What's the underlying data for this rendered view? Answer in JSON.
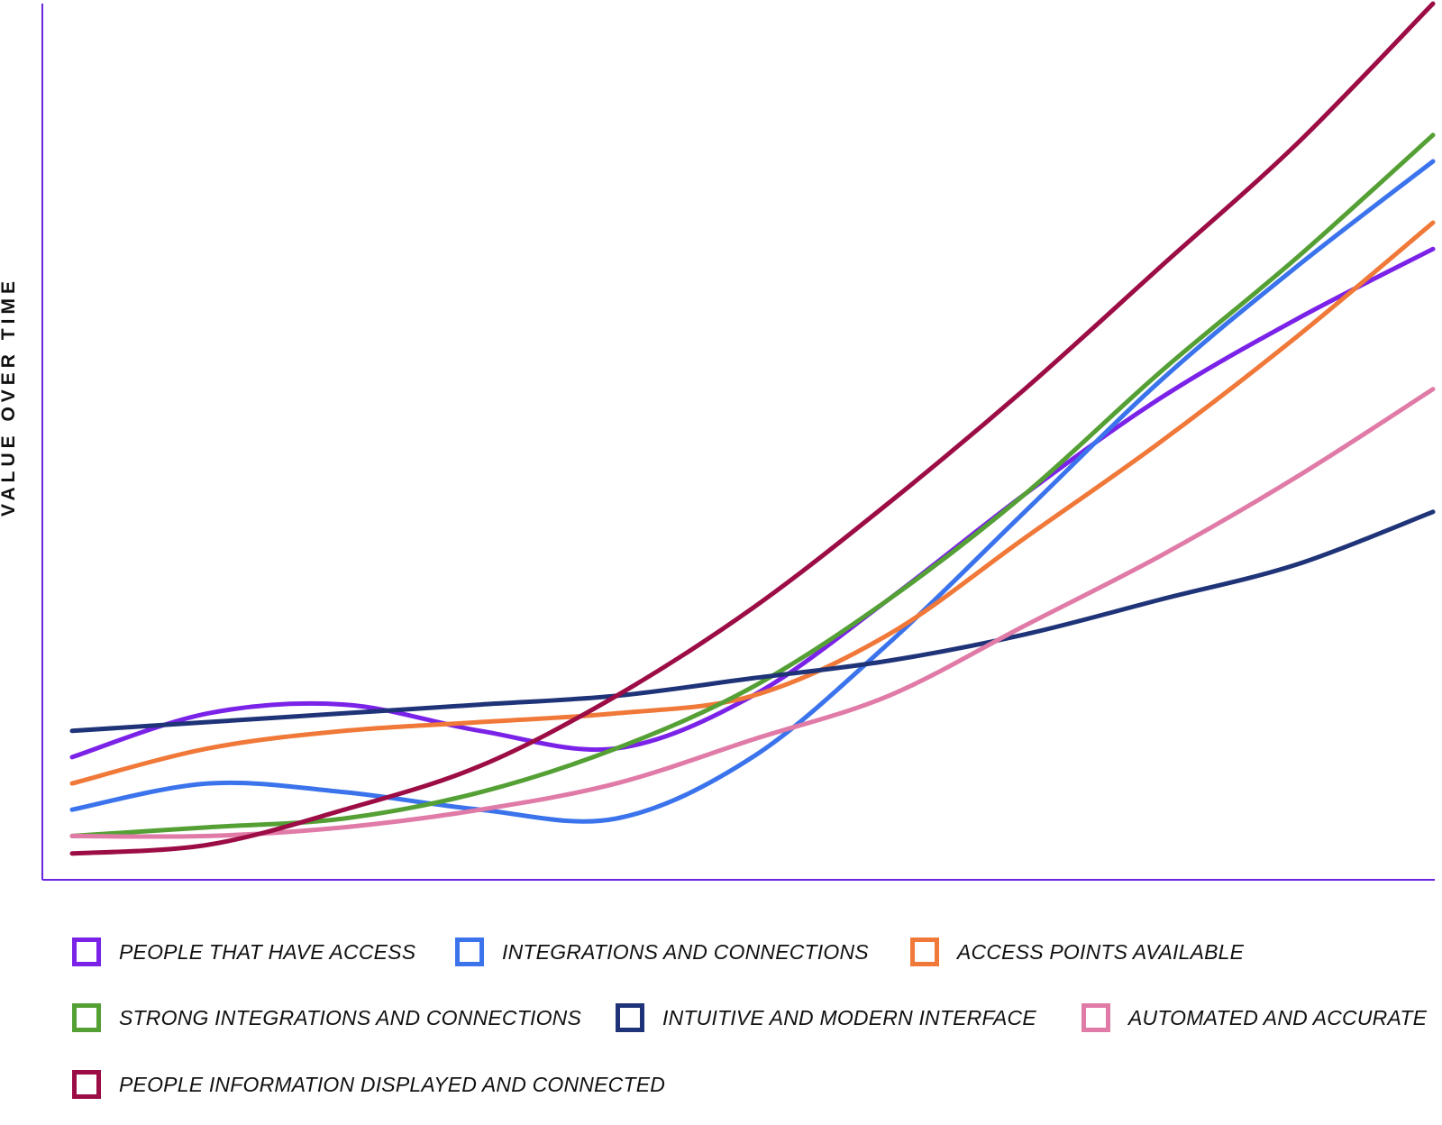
{
  "chart_data": {
    "type": "line",
    "title": "",
    "xlabel": "",
    "ylabel": "VALUE OVER TIME",
    "xlim": [
      0,
      1
    ],
    "ylim": [
      0,
      1
    ],
    "x": [
      0,
      0.1,
      0.2,
      0.3,
      0.4,
      0.5,
      0.6,
      0.7,
      0.8,
      0.9,
      1.0
    ],
    "grid": false,
    "axis_ticks": false,
    "legend_position": "bottom",
    "series": [
      {
        "name": "PEOPLE THAT HAVE ACCESS",
        "color": "#7a22e8",
        "values": [
          0.14,
          0.19,
          0.2,
          0.17,
          0.15,
          0.21,
          0.32,
          0.44,
          0.55,
          0.64,
          0.72
        ]
      },
      {
        "name": "INTEGRATIONS AND CONNECTIONS",
        "color": "#3a73ec",
        "values": [
          0.08,
          0.11,
          0.1,
          0.08,
          0.07,
          0.14,
          0.27,
          0.42,
          0.57,
          0.7,
          0.82
        ]
      },
      {
        "name": "ACCESS POINTS AVAILABLE",
        "color": "#f07838",
        "values": [
          0.11,
          0.15,
          0.17,
          0.18,
          0.19,
          0.21,
          0.28,
          0.39,
          0.5,
          0.62,
          0.75
        ]
      },
      {
        "name": "STRONG INTEGRATIONS AND CONNECTIONS",
        "color": "#54a035",
        "values": [
          0.05,
          0.06,
          0.07,
          0.1,
          0.15,
          0.22,
          0.32,
          0.44,
          0.58,
          0.71,
          0.85
        ]
      },
      {
        "name": "INTUITIVE AND MODERN INTERFACE",
        "color": "#1f3478",
        "values": [
          0.17,
          0.18,
          0.19,
          0.2,
          0.21,
          0.23,
          0.25,
          0.28,
          0.32,
          0.36,
          0.42
        ]
      },
      {
        "name": "AUTOMATED AND ACCURATE",
        "color": "#e07aa6",
        "values": [
          0.05,
          0.05,
          0.06,
          0.08,
          0.11,
          0.16,
          0.21,
          0.29,
          0.37,
          0.46,
          0.56
        ]
      },
      {
        "name": "PEOPLE INFORMATION DISPLAYED AND CONNECTED",
        "color": "#9c0c45",
        "values": [
          0.03,
          0.04,
          0.08,
          0.13,
          0.21,
          0.31,
          0.43,
          0.56,
          0.7,
          0.84,
          1.0
        ]
      }
    ]
  },
  "axis_color": "#6a25e0"
}
